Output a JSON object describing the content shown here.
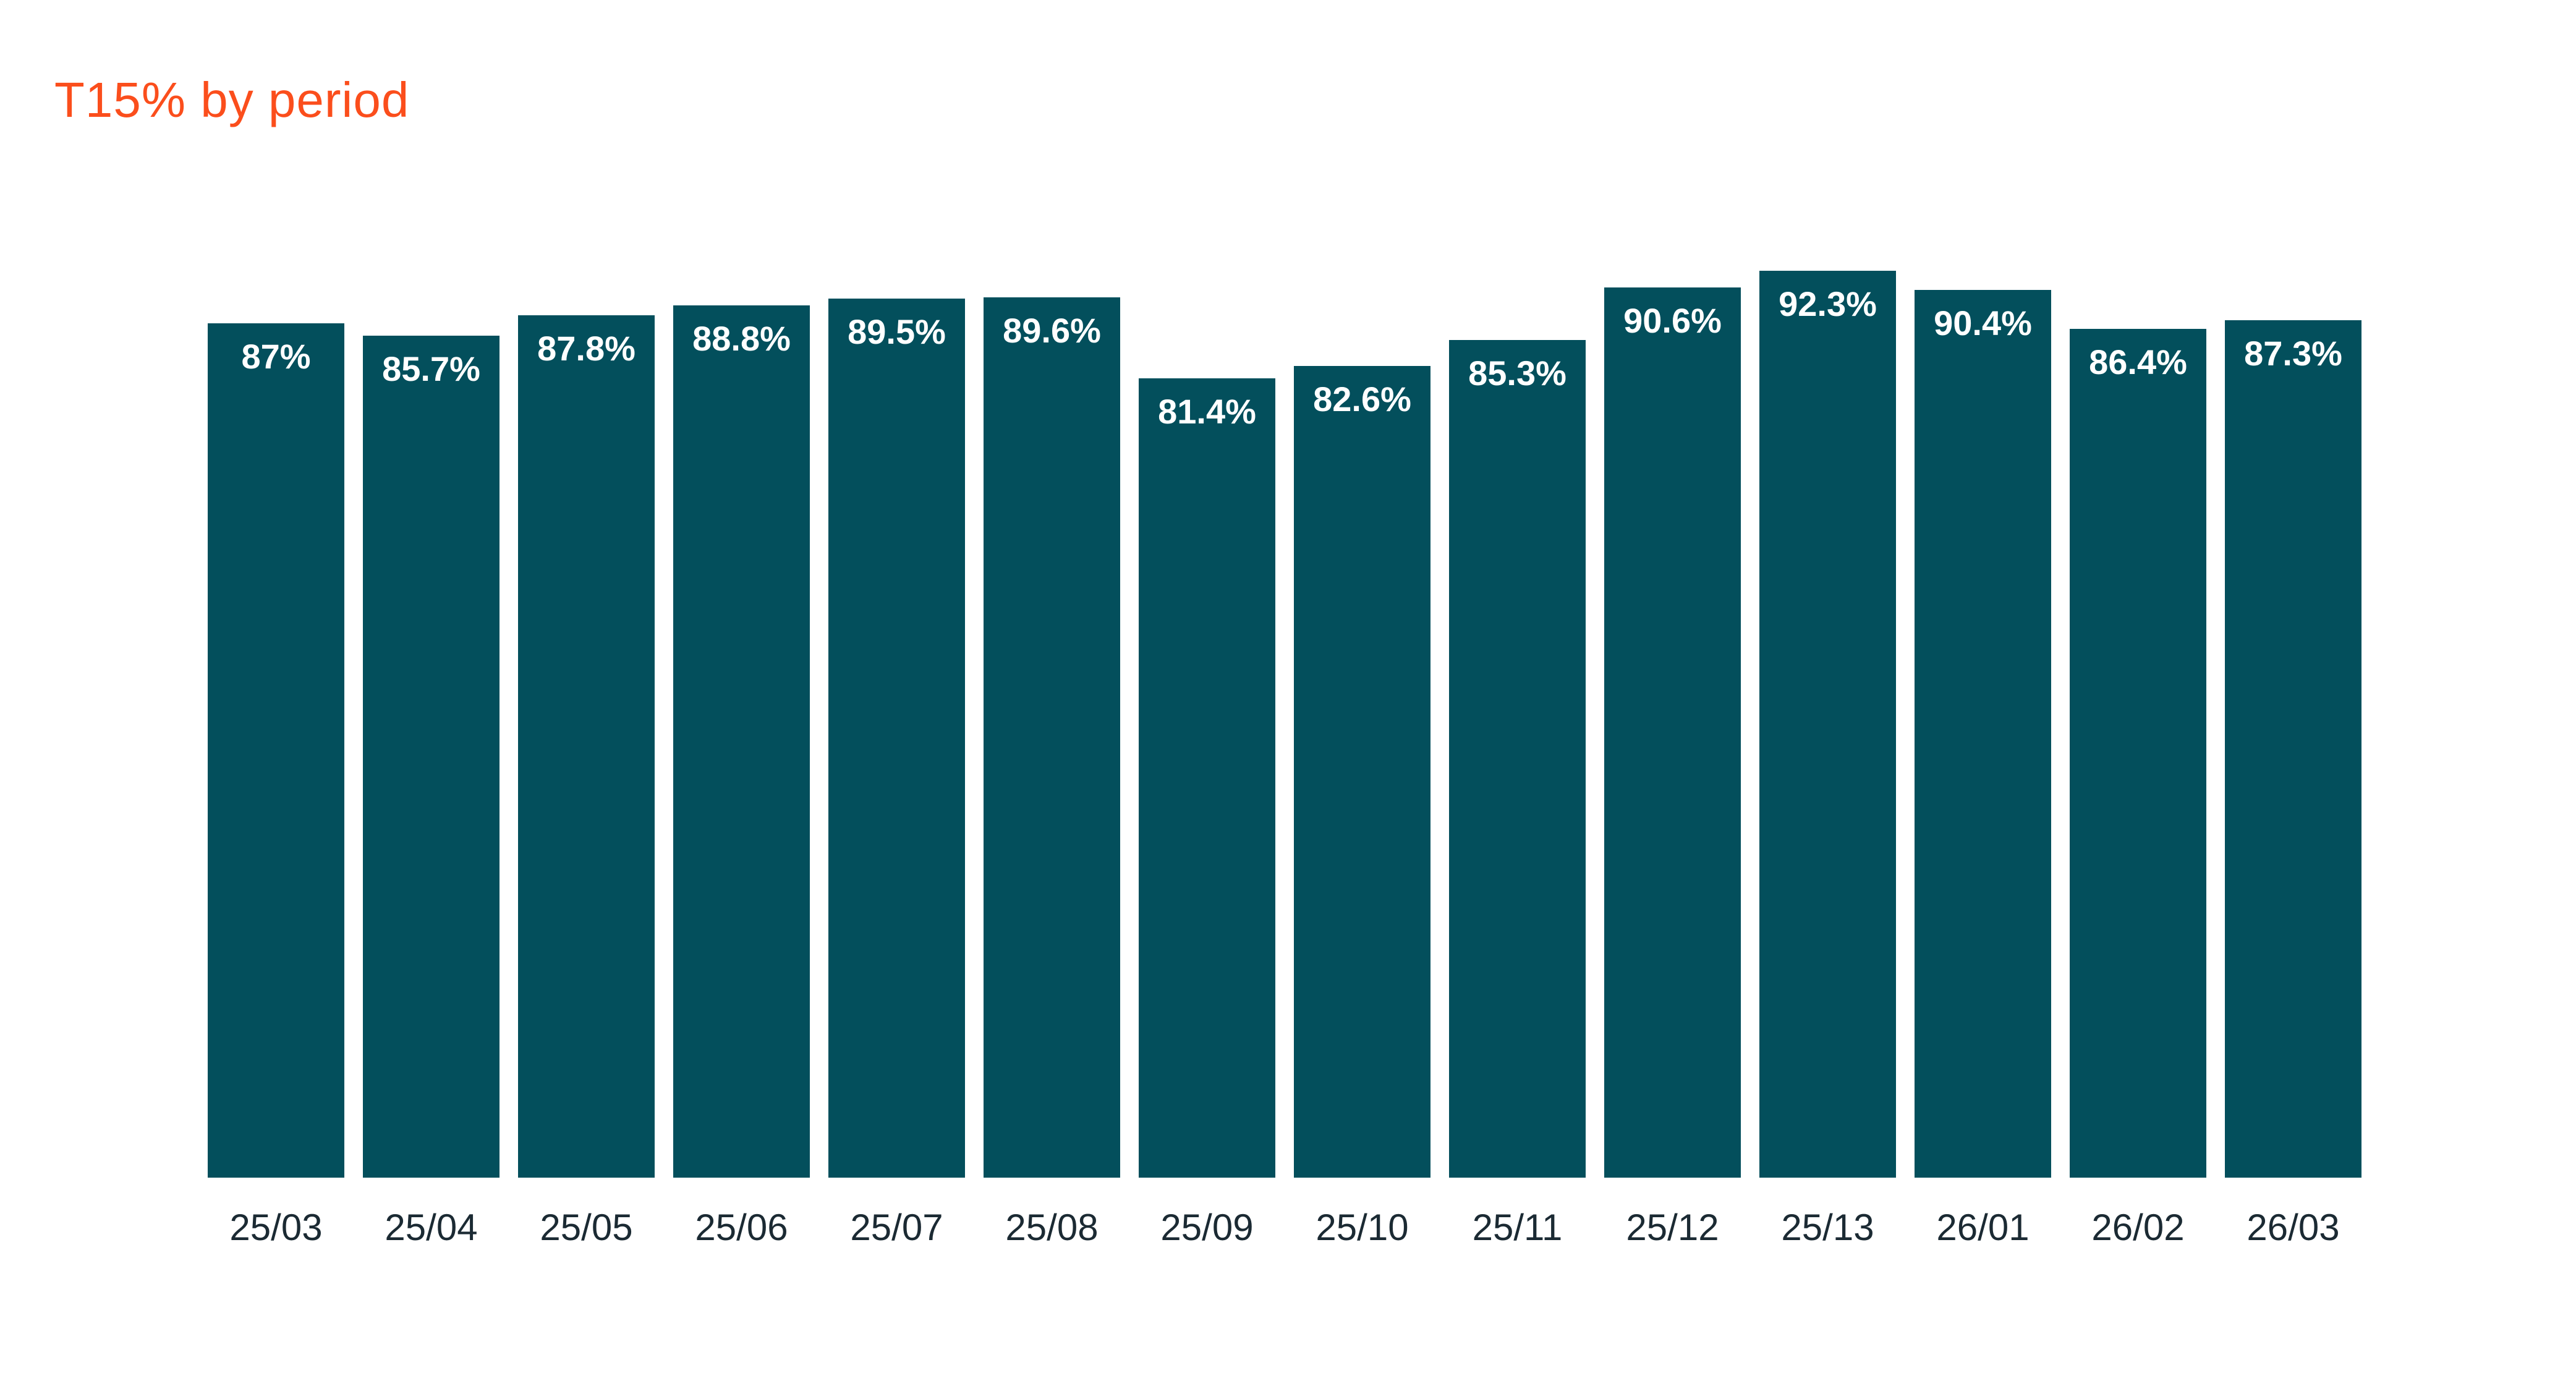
{
  "chart_data": {
    "type": "bar",
    "title": "T15% by period",
    "categories": [
      "25/03",
      "25/04",
      "25/05",
      "25/06",
      "25/07",
      "25/08",
      "25/09",
      "25/10",
      "25/11",
      "25/12",
      "25/13",
      "26/01",
      "26/02",
      "26/03"
    ],
    "values": [
      87,
      85.7,
      87.8,
      88.8,
      89.5,
      89.6,
      81.4,
      82.6,
      85.3,
      90.6,
      92.3,
      90.4,
      86.4,
      87.3
    ],
    "value_labels": [
      "87%",
      "85.7%",
      "87.8%",
      "88.8%",
      "89.5%",
      "89.6%",
      "81.4%",
      "82.6%",
      "85.3%",
      "90.6%",
      "92.3%",
      "90.4%",
      "86.4%",
      "87.3%"
    ],
    "xlabel": "",
    "ylabel": "",
    "ylim": [
      0,
      100
    ],
    "grid": false,
    "legend": false,
    "label_position": "inside-top",
    "orientation": "vertical"
  },
  "colors": {
    "background": "#FFFFFF",
    "title": "#FB4E1C",
    "bar": "#034F5C",
    "value_label": "#FFFFFF",
    "axis_label": "#1B2A33"
  }
}
